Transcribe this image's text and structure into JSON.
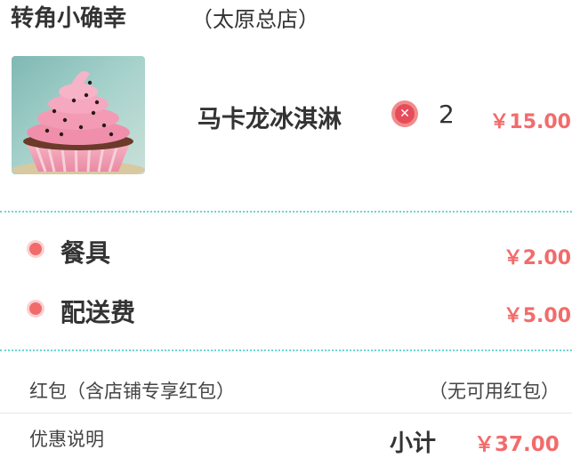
{
  "shop": {
    "name": "转角小确幸",
    "branch": "（太原总店）"
  },
  "item": {
    "image_icon": "cupcake-image",
    "name": "马卡龙冰淇淋",
    "remove_icon": "close-circle-icon",
    "quantity": "2",
    "price": "￥15.00"
  },
  "fees": [
    {
      "label": "餐具",
      "value": "￥2.00"
    },
    {
      "label": "配送费",
      "value": "￥5.00"
    }
  ],
  "red_packet": {
    "label": "红包（含店铺专享红包）",
    "status": "（无可用红包）"
  },
  "discount_info": {
    "label": "优惠说明"
  },
  "subtotal": {
    "label": "小计",
    "value": "￥37.00"
  },
  "colors": {
    "accent": "#f26b6b",
    "divider": "#6dd5cf"
  }
}
